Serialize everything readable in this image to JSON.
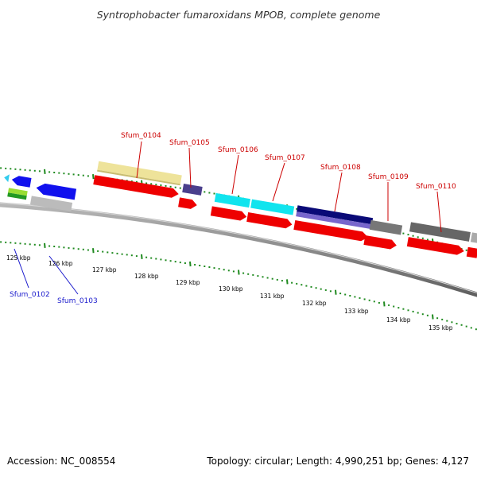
{
  "title": "Syntrophobacter fumaroxidans MPOB, complete genome",
  "footer": {
    "accession": "Accession: NC_008554",
    "topology": "Topology: circular; Length: 4,990,251 bp; Genes: 4,127"
  },
  "scale_labels": [
    "125 kbp",
    "126 kbp",
    "127 kbp",
    "128 kbp",
    "129 kbp",
    "130 kbp",
    "131 kbp",
    "132 kbp",
    "133 kbp",
    "134 kbp",
    "135 kbp"
  ],
  "gene_labels_top": [
    "Sfum_0104",
    "Sfum_0105",
    "Sfum_0106",
    "Sfum_0107",
    "Sfum_0108",
    "Sfum_0109",
    "Sfum_0110"
  ],
  "gene_labels_bottom": [
    "Sfum_0102",
    "Sfum_0103"
  ],
  "colors": {
    "title": "#333333",
    "top_label": "#cc0000",
    "bottom_label": "#1a1acc",
    "tick": "#1f8a1f",
    "backbone": "#888888",
    "cds": "#ee0000"
  }
}
